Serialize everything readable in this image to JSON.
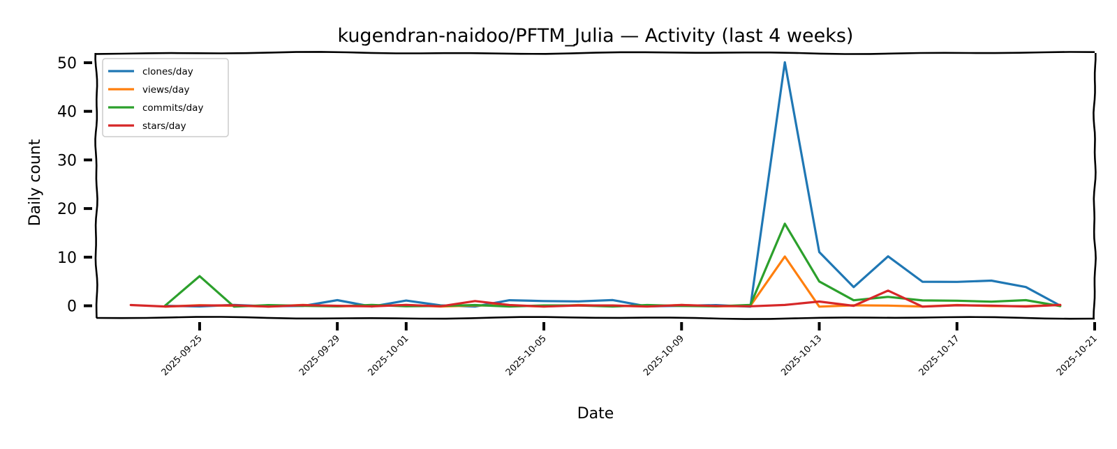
{
  "chart_data": {
    "type": "line",
    "title": "kugendran-naidoo/PFTM_Julia — Activity (last 4 weeks)",
    "xlabel": "Date",
    "ylabel": "Daily count",
    "x_range": [
      "2025-09-22",
      "2025-10-21"
    ],
    "ylim": [
      -2.5,
      52
    ],
    "yticks": [
      0,
      10,
      20,
      30,
      40,
      50
    ],
    "xticks": [
      "2025-09-25",
      "2025-09-29",
      "2025-10-01",
      "2025-10-05",
      "2025-10-09",
      "2025-10-13",
      "2025-10-17",
      "2025-10-21"
    ],
    "grid": false,
    "legend_position": "upper left",
    "style": "xkcd",
    "series": [
      {
        "name": "clones/day",
        "color": "#1f77b4",
        "points": [
          [
            "2025-09-24",
            0
          ],
          [
            "2025-09-25",
            0
          ],
          [
            "2025-09-26",
            0
          ],
          [
            "2025-09-27",
            0
          ],
          [
            "2025-09-28",
            0
          ],
          [
            "2025-09-29",
            1
          ],
          [
            "2025-09-30",
            0
          ],
          [
            "2025-10-01",
            1
          ],
          [
            "2025-10-02",
            0
          ],
          [
            "2025-10-03",
            0
          ],
          [
            "2025-10-04",
            1
          ],
          [
            "2025-10-05",
            1
          ],
          [
            "2025-10-06",
            1
          ],
          [
            "2025-10-07",
            1
          ],
          [
            "2025-10-08",
            0
          ],
          [
            "2025-10-09",
            0
          ],
          [
            "2025-10-10",
            0
          ],
          [
            "2025-10-11",
            0
          ],
          [
            "2025-10-12",
            50
          ],
          [
            "2025-10-13",
            11
          ],
          [
            "2025-10-14",
            4
          ],
          [
            "2025-10-15",
            10
          ],
          [
            "2025-10-16",
            5
          ],
          [
            "2025-10-17",
            5
          ],
          [
            "2025-10-18",
            5
          ],
          [
            "2025-10-19",
            4
          ],
          [
            "2025-10-20",
            0
          ]
        ]
      },
      {
        "name": "views/day",
        "color": "#ff7f0e",
        "points": [
          [
            "2025-09-24",
            0
          ],
          [
            "2025-09-25",
            0
          ],
          [
            "2025-09-26",
            0
          ],
          [
            "2025-09-27",
            0
          ],
          [
            "2025-09-28",
            0
          ],
          [
            "2025-09-29",
            0
          ],
          [
            "2025-09-30",
            0
          ],
          [
            "2025-10-01",
            0
          ],
          [
            "2025-10-02",
            0
          ],
          [
            "2025-10-03",
            0
          ],
          [
            "2025-10-04",
            0
          ],
          [
            "2025-10-05",
            0
          ],
          [
            "2025-10-06",
            0
          ],
          [
            "2025-10-07",
            0
          ],
          [
            "2025-10-08",
            0
          ],
          [
            "2025-10-09",
            0
          ],
          [
            "2025-10-10",
            0
          ],
          [
            "2025-10-11",
            0
          ],
          [
            "2025-10-12",
            10
          ],
          [
            "2025-10-13",
            0
          ],
          [
            "2025-10-14",
            0
          ],
          [
            "2025-10-15",
            0
          ],
          [
            "2025-10-16",
            0
          ],
          [
            "2025-10-17",
            0
          ],
          [
            "2025-10-18",
            0
          ],
          [
            "2025-10-19",
            0
          ],
          [
            "2025-10-20",
            0
          ]
        ]
      },
      {
        "name": "commits/day",
        "color": "#2ca02c",
        "points": [
          [
            "2025-09-24",
            0
          ],
          [
            "2025-09-25",
            6
          ],
          [
            "2025-09-26",
            0
          ],
          [
            "2025-09-27",
            0
          ],
          [
            "2025-09-28",
            0
          ],
          [
            "2025-09-29",
            0
          ],
          [
            "2025-09-30",
            0
          ],
          [
            "2025-10-01",
            0
          ],
          [
            "2025-10-02",
            0
          ],
          [
            "2025-10-03",
            0
          ],
          [
            "2025-10-04",
            0
          ],
          [
            "2025-10-05",
            0
          ],
          [
            "2025-10-06",
            0
          ],
          [
            "2025-10-07",
            0
          ],
          [
            "2025-10-08",
            0
          ],
          [
            "2025-10-09",
            0
          ],
          [
            "2025-10-10",
            0
          ],
          [
            "2025-10-11",
            0
          ],
          [
            "2025-10-12",
            17
          ],
          [
            "2025-10-13",
            5
          ],
          [
            "2025-10-14",
            1
          ],
          [
            "2025-10-15",
            2
          ],
          [
            "2025-10-16",
            1
          ],
          [
            "2025-10-17",
            1
          ],
          [
            "2025-10-18",
            1
          ],
          [
            "2025-10-19",
            1
          ],
          [
            "2025-10-20",
            0
          ]
        ]
      },
      {
        "name": "stars/day",
        "color": "#d62728",
        "points": [
          [
            "2025-09-23",
            0
          ],
          [
            "2025-09-24",
            0
          ],
          [
            "2025-09-25",
            0
          ],
          [
            "2025-09-26",
            0
          ],
          [
            "2025-09-27",
            0
          ],
          [
            "2025-09-28",
            0
          ],
          [
            "2025-09-29",
            0
          ],
          [
            "2025-09-30",
            0
          ],
          [
            "2025-10-01",
            0
          ],
          [
            "2025-10-02",
            0
          ],
          [
            "2025-10-03",
            1
          ],
          [
            "2025-10-04",
            0
          ],
          [
            "2025-10-05",
            0
          ],
          [
            "2025-10-06",
            0
          ],
          [
            "2025-10-07",
            0
          ],
          [
            "2025-10-08",
            0
          ],
          [
            "2025-10-09",
            0
          ],
          [
            "2025-10-10",
            0
          ],
          [
            "2025-10-11",
            0
          ],
          [
            "2025-10-12",
            0
          ],
          [
            "2025-10-13",
            1
          ],
          [
            "2025-10-14",
            0
          ],
          [
            "2025-10-15",
            3
          ],
          [
            "2025-10-16",
            0
          ],
          [
            "2025-10-17",
            0
          ],
          [
            "2025-10-18",
            0
          ],
          [
            "2025-10-19",
            0
          ],
          [
            "2025-10-20",
            0
          ]
        ]
      }
    ]
  }
}
